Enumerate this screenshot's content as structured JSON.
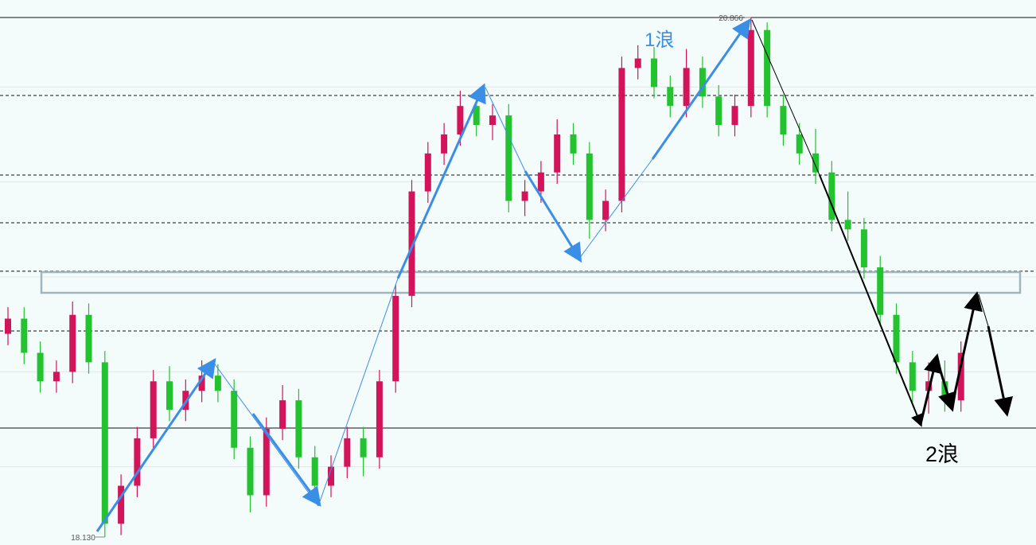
{
  "chart_data": {
    "type": "candlestick",
    "open": [
      19.2,
      19.28,
      19.1,
      18.95,
      19.0,
      19.3,
      19.05,
      18.2,
      18.4,
      18.65,
      18.95,
      18.8,
      18.9,
      18.98,
      18.9,
      18.6,
      18.35,
      18.7,
      18.85,
      18.55,
      18.4,
      18.5,
      18.65,
      18.55,
      18.95,
      19.4,
      19.95,
      20.15,
      20.25,
      20.4,
      20.3,
      20.35,
      19.9,
      19.95,
      20.05,
      20.25,
      20.15,
      19.8,
      19.9,
      20.6,
      20.65,
      20.5,
      20.4,
      20.6,
      20.45,
      20.3,
      20.4,
      20.8,
      20.4,
      20.25,
      20.15,
      20.05,
      19.8,
      19.75,
      19.55,
      19.3,
      19.05,
      18.9,
      18.95,
      18.85
    ],
    "high": [
      19.34,
      19.34,
      19.16,
      19.06,
      19.37,
      19.36,
      19.11,
      18.46,
      18.71,
      19.01,
      19.03,
      18.96,
      19.06,
      19.04,
      18.96,
      18.66,
      18.76,
      18.93,
      18.91,
      18.61,
      18.56,
      18.71,
      18.71,
      19.01,
      19.46,
      20.01,
      20.21,
      20.31,
      20.48,
      20.46,
      20.41,
      20.41,
      20.01,
      20.11,
      20.33,
      20.31,
      20.21,
      19.96,
      20.66,
      20.72,
      20.71,
      20.56,
      20.7,
      20.66,
      20.51,
      20.46,
      20.866,
      20.84,
      20.46,
      20.31,
      20.28,
      20.11,
      19.95,
      19.81,
      19.61,
      19.36,
      19.11,
      19.05,
      19.06,
      19.16
    ],
    "low": [
      19.14,
      19.04,
      18.89,
      18.89,
      18.94,
      18.99,
      18.13,
      18.14,
      18.34,
      18.59,
      18.74,
      18.74,
      18.84,
      18.84,
      18.54,
      18.26,
      18.29,
      18.64,
      18.49,
      18.32,
      18.34,
      18.44,
      18.45,
      18.49,
      18.89,
      19.34,
      19.89,
      20.09,
      20.19,
      20.24,
      20.22,
      19.84,
      19.82,
      19.89,
      19.99,
      20.09,
      19.7,
      19.74,
      19.84,
      20.54,
      20.44,
      20.34,
      20.34,
      20.39,
      20.24,
      20.24,
      20.34,
      20.34,
      20.19,
      20.09,
      19.99,
      19.74,
      19.69,
      19.49,
      19.24,
      18.99,
      18.84,
      18.78,
      18.79,
      18.79
    ],
    "close": [
      19.28,
      19.1,
      18.95,
      19.0,
      19.3,
      19.05,
      18.2,
      18.4,
      18.65,
      18.95,
      18.8,
      18.9,
      18.98,
      18.9,
      18.6,
      18.35,
      18.7,
      18.85,
      18.55,
      18.4,
      18.5,
      18.65,
      18.55,
      18.95,
      19.4,
      19.95,
      20.15,
      20.25,
      20.4,
      20.3,
      20.35,
      19.9,
      19.95,
      20.05,
      20.25,
      20.15,
      19.8,
      19.9,
      20.6,
      20.65,
      20.5,
      20.4,
      20.6,
      20.45,
      20.3,
      20.4,
      20.8,
      20.4,
      20.25,
      20.15,
      20.05,
      19.8,
      19.75,
      19.55,
      19.3,
      19.05,
      18.9,
      18.95,
      18.85,
      19.1
    ],
    "up_color": "#d4145a",
    "down_color": "#22c32e",
    "ylim": [
      18.088,
      20.958
    ],
    "yticks": [
      18.5,
      19,
      19.5,
      20,
      20.5
    ],
    "grid": true,
    "dashed_levels": [
      20.455,
      20.036,
      19.785,
      19.53,
      19.215
    ],
    "solid_levels": [
      20.866,
      18.704
    ],
    "zone": [
      19.416,
      19.525
    ],
    "extremes": [
      {
        "value": 20.866,
        "label": "20.866"
      },
      {
        "value": 18.13,
        "label": "18.130"
      }
    ],
    "annotations": [
      "1浪",
      "2浪"
    ]
  }
}
